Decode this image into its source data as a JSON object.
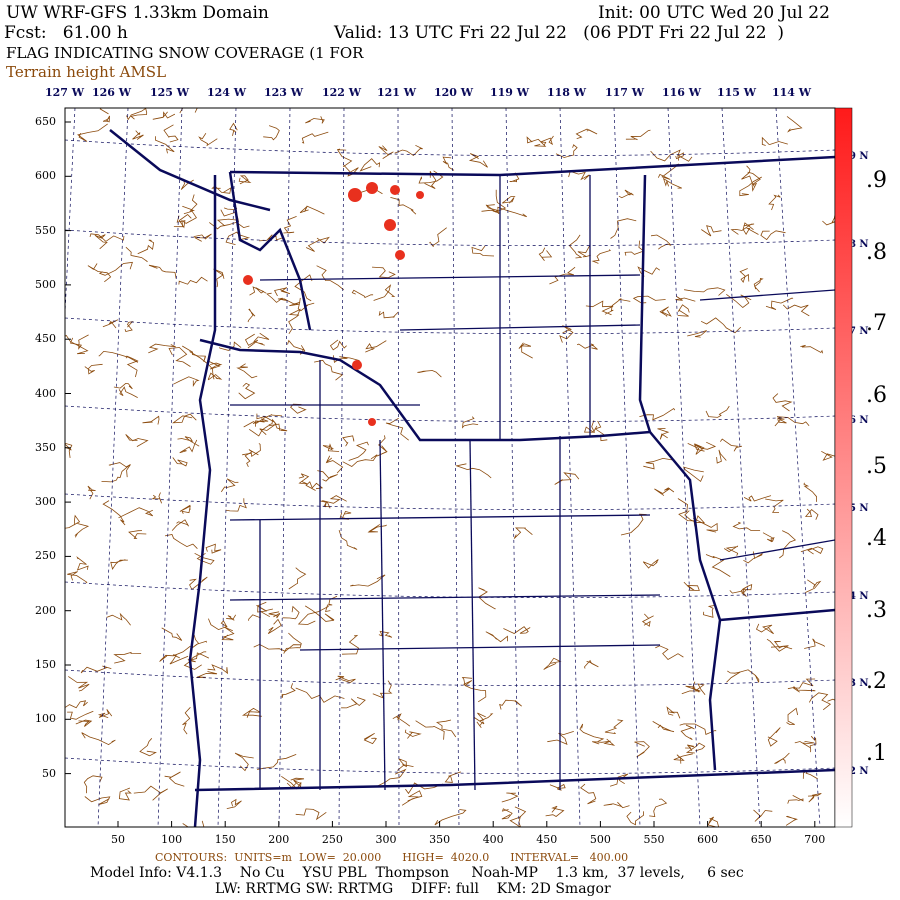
{
  "header": {
    "title": "UW WRF-GFS 1.33km Domain",
    "init": "Init: 00 UTC Wed 20 Jul 22",
    "fcst": "Fcst:   61.00 h",
    "valid": "Valid: 13 UTC Fri 22 Jul 22   (06 PDT Fri 22 Jul 22  )",
    "field": "FLAG INDICATING SNOW COVERAGE (1 FOR",
    "contour_field": "Terrain height AMSL"
  },
  "longitude_labels": [
    "127 W",
    "126 W",
    "125 W",
    "124 W",
    "123 W",
    "122 W",
    "121 W",
    "120 W",
    "119 W",
    "118 W",
    "117 W",
    "116 W",
    "115 W",
    "114 W"
  ],
  "latitude_labels": [
    "49 N",
    "48 N",
    "47 N",
    "46 N",
    "45 N",
    "44 N",
    "43 N",
    "42 N"
  ],
  "y_ticks": [
    "650",
    "600",
    "550",
    "500",
    "450",
    "400",
    "350",
    "300",
    "250",
    "200",
    "150",
    "100",
    "50"
  ],
  "x_ticks": [
    "50",
    "100",
    "150",
    "200",
    "250",
    "300",
    "350",
    "400",
    "450",
    "500",
    "550",
    "600",
    "650",
    "700"
  ],
  "colorbar": {
    "labels": [
      ".9",
      ".8",
      ".7",
      ".6",
      ".5",
      ".4",
      ".3",
      ".2",
      ".1"
    ],
    "range": [
      0,
      1
    ],
    "color_high": "#ff1a1a",
    "color_low": "#ffffff"
  },
  "colors": {
    "terrain_contours": "#8b4a0c",
    "borders": "#0a0a5a",
    "snow": "#e8301e"
  },
  "footer": {
    "contours": "CONTOURS:  UNITS=m  LOW=  20.000      HIGH=  4020.0      INTERVAL=   400.00",
    "model_info": "Model Info: V4.1.3    No Cu    YSU PBL  Thompson     Noah-MP    1.3 km,  37 levels,     6 sec",
    "physics": "LW: RRTMG SW: RRTMG    DIFF: full    KM: 2D Smagor"
  }
}
